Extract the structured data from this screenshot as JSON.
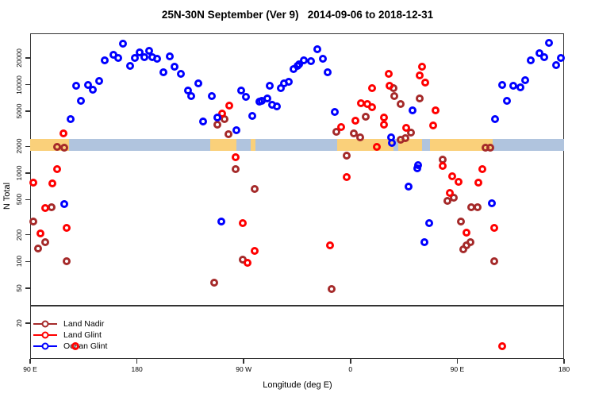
{
  "title": "25N-30N September (Ver 9)   2014-09-06 to 2018-12-31",
  "colors": {
    "axis": "#333333",
    "background": "#FFFFFF"
  },
  "chart_data": {
    "type": "scatter",
    "title": "25N-30N September (Ver 9)   2014-09-06 to 2018-12-31",
    "xlabel": "Longitude (deg E)",
    "ylabel": "N Total",
    "x_axis_note": "Longitude axis spans 450 deg starting at 90E, crossing the dateline and wrapping to 180; stored as continuous degrees 90..540",
    "x_domain": [
      90,
      540
    ],
    "y_domain": [
      7.9,
      38000
    ],
    "y_scale": "log10",
    "grid": false,
    "legend_position": "bottom-left",
    "x_ticks": [
      {
        "v": 90,
        "label": "90 E"
      },
      {
        "v": 180,
        "label": "180"
      },
      {
        "v": 270,
        "label": "90 W"
      },
      {
        "v": 360,
        "label": "0"
      },
      {
        "v": 450,
        "label": "90 E"
      },
      {
        "v": 540,
        "label": "180"
      }
    ],
    "y_ticks": [
      20,
      50,
      100,
      200,
      500,
      1000,
      2000,
      5000,
      10000,
      20000
    ],
    "band": {
      "description": "land/ocean coastline strip for 25N-30N drawn across the plot",
      "y_range": [
        1780,
        2450
      ],
      "land_color": "#FAD07A",
      "ocean_color": "#B0C4DE",
      "segments": [
        {
          "from": 90,
          "to": 123,
          "type": "land"
        },
        {
          "from": 123,
          "to": 242,
          "type": "ocean"
        },
        {
          "from": 242,
          "to": 264,
          "type": "land"
        },
        {
          "from": 264,
          "to": 276,
          "type": "ocean"
        },
        {
          "from": 276,
          "to": 280,
          "type": "land"
        },
        {
          "from": 280,
          "to": 349,
          "type": "ocean"
        },
        {
          "from": 349,
          "to": 396,
          "type": "land"
        },
        {
          "from": 396,
          "to": 400,
          "type": "ocean"
        },
        {
          "from": 400,
          "to": 420,
          "type": "land"
        },
        {
          "from": 420,
          "to": 427,
          "type": "ocean"
        },
        {
          "from": 427,
          "to": 480,
          "type": "land"
        },
        {
          "from": 480,
          "to": 540,
          "type": "ocean"
        }
      ]
    },
    "series": [
      {
        "name": "Land Nadir",
        "color": "#A52A2A",
        "points": [
          [
            113,
            1970
          ],
          [
            119,
            1930
          ],
          [
            108,
            409
          ],
          [
            93,
            282
          ],
          [
            103,
            164
          ],
          [
            97,
            140
          ],
          [
            121,
            100
          ],
          [
            254,
            4070
          ],
          [
            248,
            3520
          ],
          [
            257,
            2750
          ],
          [
            263,
            1100
          ],
          [
            279,
            658
          ],
          [
            269,
            105
          ],
          [
            245,
            57
          ],
          [
            396,
            9120
          ],
          [
            397,
            7410
          ],
          [
            402,
            6050
          ],
          [
            418,
            6960
          ],
          [
            373,
            4330
          ],
          [
            348,
            2920
          ],
          [
            411,
            2860
          ],
          [
            363,
            2800
          ],
          [
            368,
            2530
          ],
          [
            402,
            2370
          ],
          [
            406,
            2470
          ],
          [
            357,
            1560
          ],
          [
            474,
            1930
          ],
          [
            478,
            1930
          ],
          [
            438,
            1420
          ],
          [
            344,
            49
          ],
          [
            447,
            525
          ],
          [
            442,
            483
          ],
          [
            462,
            409
          ],
          [
            467,
            409
          ],
          [
            453,
            282
          ],
          [
            461,
            164
          ],
          [
            458,
            152
          ],
          [
            455,
            137
          ],
          [
            481,
            100
          ]
        ]
      },
      {
        "name": "Land Glint",
        "color": "#FF0000",
        "points": [
          [
            118,
            2800
          ],
          [
            113,
            1100
          ],
          [
            93,
            777
          ],
          [
            109,
            760
          ],
          [
            103,
            401
          ],
          [
            99,
            207
          ],
          [
            121,
            239
          ],
          [
            263,
            1510
          ],
          [
            258,
            5780
          ],
          [
            252,
            4700
          ],
          [
            269,
            270
          ],
          [
            279,
            131
          ],
          [
            273,
            96
          ],
          [
            392,
            13200
          ],
          [
            420,
            15900
          ],
          [
            418,
            12700
          ],
          [
            423,
            10500
          ],
          [
            393,
            9700
          ],
          [
            378,
            9120
          ],
          [
            369,
            6150
          ],
          [
            374,
            6050
          ],
          [
            378,
            5550
          ],
          [
            364,
            3900
          ],
          [
            388,
            4240
          ],
          [
            388,
            3520
          ],
          [
            352,
            3300
          ],
          [
            407,
            3240
          ],
          [
            382,
            1970
          ],
          [
            432,
            5100
          ],
          [
            430,
            3440
          ],
          [
            357,
            898
          ],
          [
            343,
            152
          ],
          [
            438,
            1200
          ],
          [
            446,
            917
          ],
          [
            451,
            793
          ],
          [
            468,
            777
          ],
          [
            471,
            1100
          ],
          [
            444,
            594
          ],
          [
            481,
            239
          ],
          [
            458,
            211
          ],
          [
            128,
            11
          ],
          [
            488,
            11
          ]
        ]
      },
      {
        "name": "Ocean Glint",
        "color": "#0000FF",
        "points": [
          [
            168,
            29000
          ],
          [
            153,
            18800
          ],
          [
            160,
            21700
          ],
          [
            164,
            20000
          ],
          [
            174,
            16300
          ],
          [
            178,
            20000
          ],
          [
            182,
            23100
          ],
          [
            186,
            20400
          ],
          [
            190,
            24100
          ],
          [
            193,
            20400
          ],
          [
            197,
            19600
          ],
          [
            202,
            13800
          ],
          [
            148,
            11000
          ],
          [
            139,
            9900
          ],
          [
            143,
            8740
          ],
          [
            129,
            9700
          ],
          [
            133,
            6540
          ],
          [
            124,
            4070
          ],
          [
            208,
            20800
          ],
          [
            212,
            15900
          ],
          [
            217,
            13200
          ],
          [
            232,
            10300
          ],
          [
            223,
            8570
          ],
          [
            226,
            7410
          ],
          [
            243,
            7410
          ],
          [
            236,
            3820
          ],
          [
            248,
            4240
          ],
          [
            264,
            3040
          ],
          [
            268,
            8570
          ],
          [
            272,
            7260
          ],
          [
            277,
            4420
          ],
          [
            283,
            6410
          ],
          [
            285,
            6540
          ],
          [
            290,
            6960
          ],
          [
            294,
            5900
          ],
          [
            298,
            5660
          ],
          [
            292,
            9700
          ],
          [
            301,
            9120
          ],
          [
            304,
            10300
          ],
          [
            308,
            10800
          ],
          [
            312,
            15000
          ],
          [
            315,
            16300
          ],
          [
            332,
            25100
          ],
          [
            321,
            18800
          ],
          [
            317,
            16900
          ],
          [
            327,
            18400
          ],
          [
            337,
            19600
          ],
          [
            341,
            13800
          ],
          [
            347,
            4900
          ],
          [
            412,
            5100
          ],
          [
            394,
            2530
          ],
          [
            395,
            2190
          ],
          [
            417,
            1220
          ],
          [
            527,
            29600
          ],
          [
            519,
            22600
          ],
          [
            523,
            20400
          ],
          [
            512,
            18800
          ],
          [
            533,
            16600
          ],
          [
            537,
            20000
          ],
          [
            507,
            11200
          ],
          [
            497,
            9700
          ],
          [
            503,
            9310
          ],
          [
            488,
            9900
          ],
          [
            492,
            6540
          ],
          [
            482,
            4070
          ],
          [
            119,
            445
          ],
          [
            251,
            282
          ],
          [
            416,
            1130
          ],
          [
            409,
            700
          ],
          [
            426,
            270
          ],
          [
            422,
            164
          ],
          [
            479,
            454
          ]
        ]
      }
    ]
  }
}
